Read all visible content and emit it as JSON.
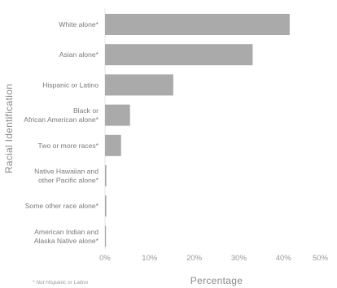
{
  "chart_data": {
    "type": "bar",
    "orientation": "horizontal",
    "categories": [
      [
        "White alone*"
      ],
      [
        "Asian alone*"
      ],
      [
        "Hispanic or Latino"
      ],
      [
        "Black or",
        "African American alone*"
      ],
      [
        "Two or more races*"
      ],
      [
        "Native Hawaiian and",
        "other Pacific alone*"
      ],
      [
        "Some other race alone*"
      ],
      [
        "American Indian and",
        "Alaska Native alone*"
      ]
    ],
    "values": [
      41.4,
      33.1,
      15.3,
      5.6,
      3.6,
      0.3,
      0.3,
      0.2
    ],
    "xlabel": "Percentage",
    "ylabel": "Racial Identification",
    "xlim": [
      0,
      50
    ],
    "xticks": [
      "0%",
      "10%",
      "20%",
      "30%",
      "40%",
      "50%"
    ],
    "footnote": "* Not Hispanic or Latino",
    "bar_color": "#aaaaaa",
    "grid": false
  }
}
